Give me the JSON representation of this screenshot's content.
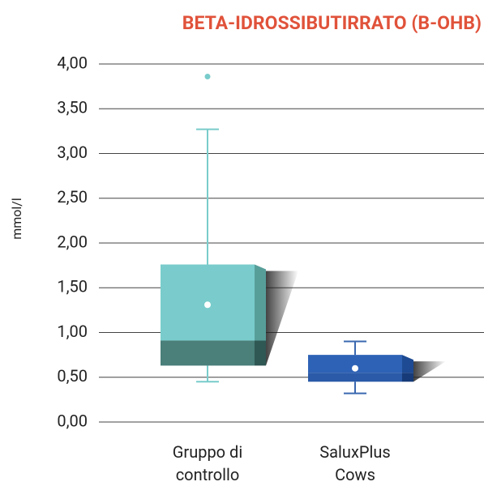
{
  "chart_data": {
    "type": "box",
    "title": "BETA-IDROSSIBUTIRRATO (B-OHB)",
    "title_color": "#e0523a",
    "ylabel": "mmol/l",
    "categories": [
      "Gruppo di controllo",
      "SaluxPlus Cows"
    ],
    "boxes": [
      {
        "min": 0.45,
        "q1": 0.63,
        "median": 0.91,
        "q3": 1.76,
        "max": 3.27,
        "mean": 1.31,
        "outliers": [
          3.86
        ],
        "color": "#79cccb",
        "lower_color": "#4a7f7a",
        "side_color": "#579e99",
        "lower_side_color": "#2f5753",
        "whisker_color": "#79cccb"
      },
      {
        "min": 0.32,
        "q1": 0.45,
        "median": 0.55,
        "q3": 0.75,
        "max": 0.9,
        "mean": 0.6,
        "outliers": [],
        "color": "#2e62b6",
        "lower_color": "#2a5aa8",
        "side_color": "#1d4a92",
        "lower_side_color": "#163b78",
        "whisker_color": "#3a68b0"
      }
    ],
    "ylim": [
      0,
      4
    ],
    "yticks": [
      {
        "value": 0,
        "label": "0,00"
      },
      {
        "value": 0.5,
        "label": "0,50"
      },
      {
        "value": 1,
        "label": "1,00"
      },
      {
        "value": 1.5,
        "label": "1,50"
      },
      {
        "value": 2,
        "label": "2,00"
      },
      {
        "value": 2.5,
        "label": "2,50"
      },
      {
        "value": 3,
        "label": "3,00"
      },
      {
        "value": 3.5,
        "label": "3,50"
      },
      {
        "value": 4,
        "label": "4,00"
      }
    ],
    "grid": true
  }
}
